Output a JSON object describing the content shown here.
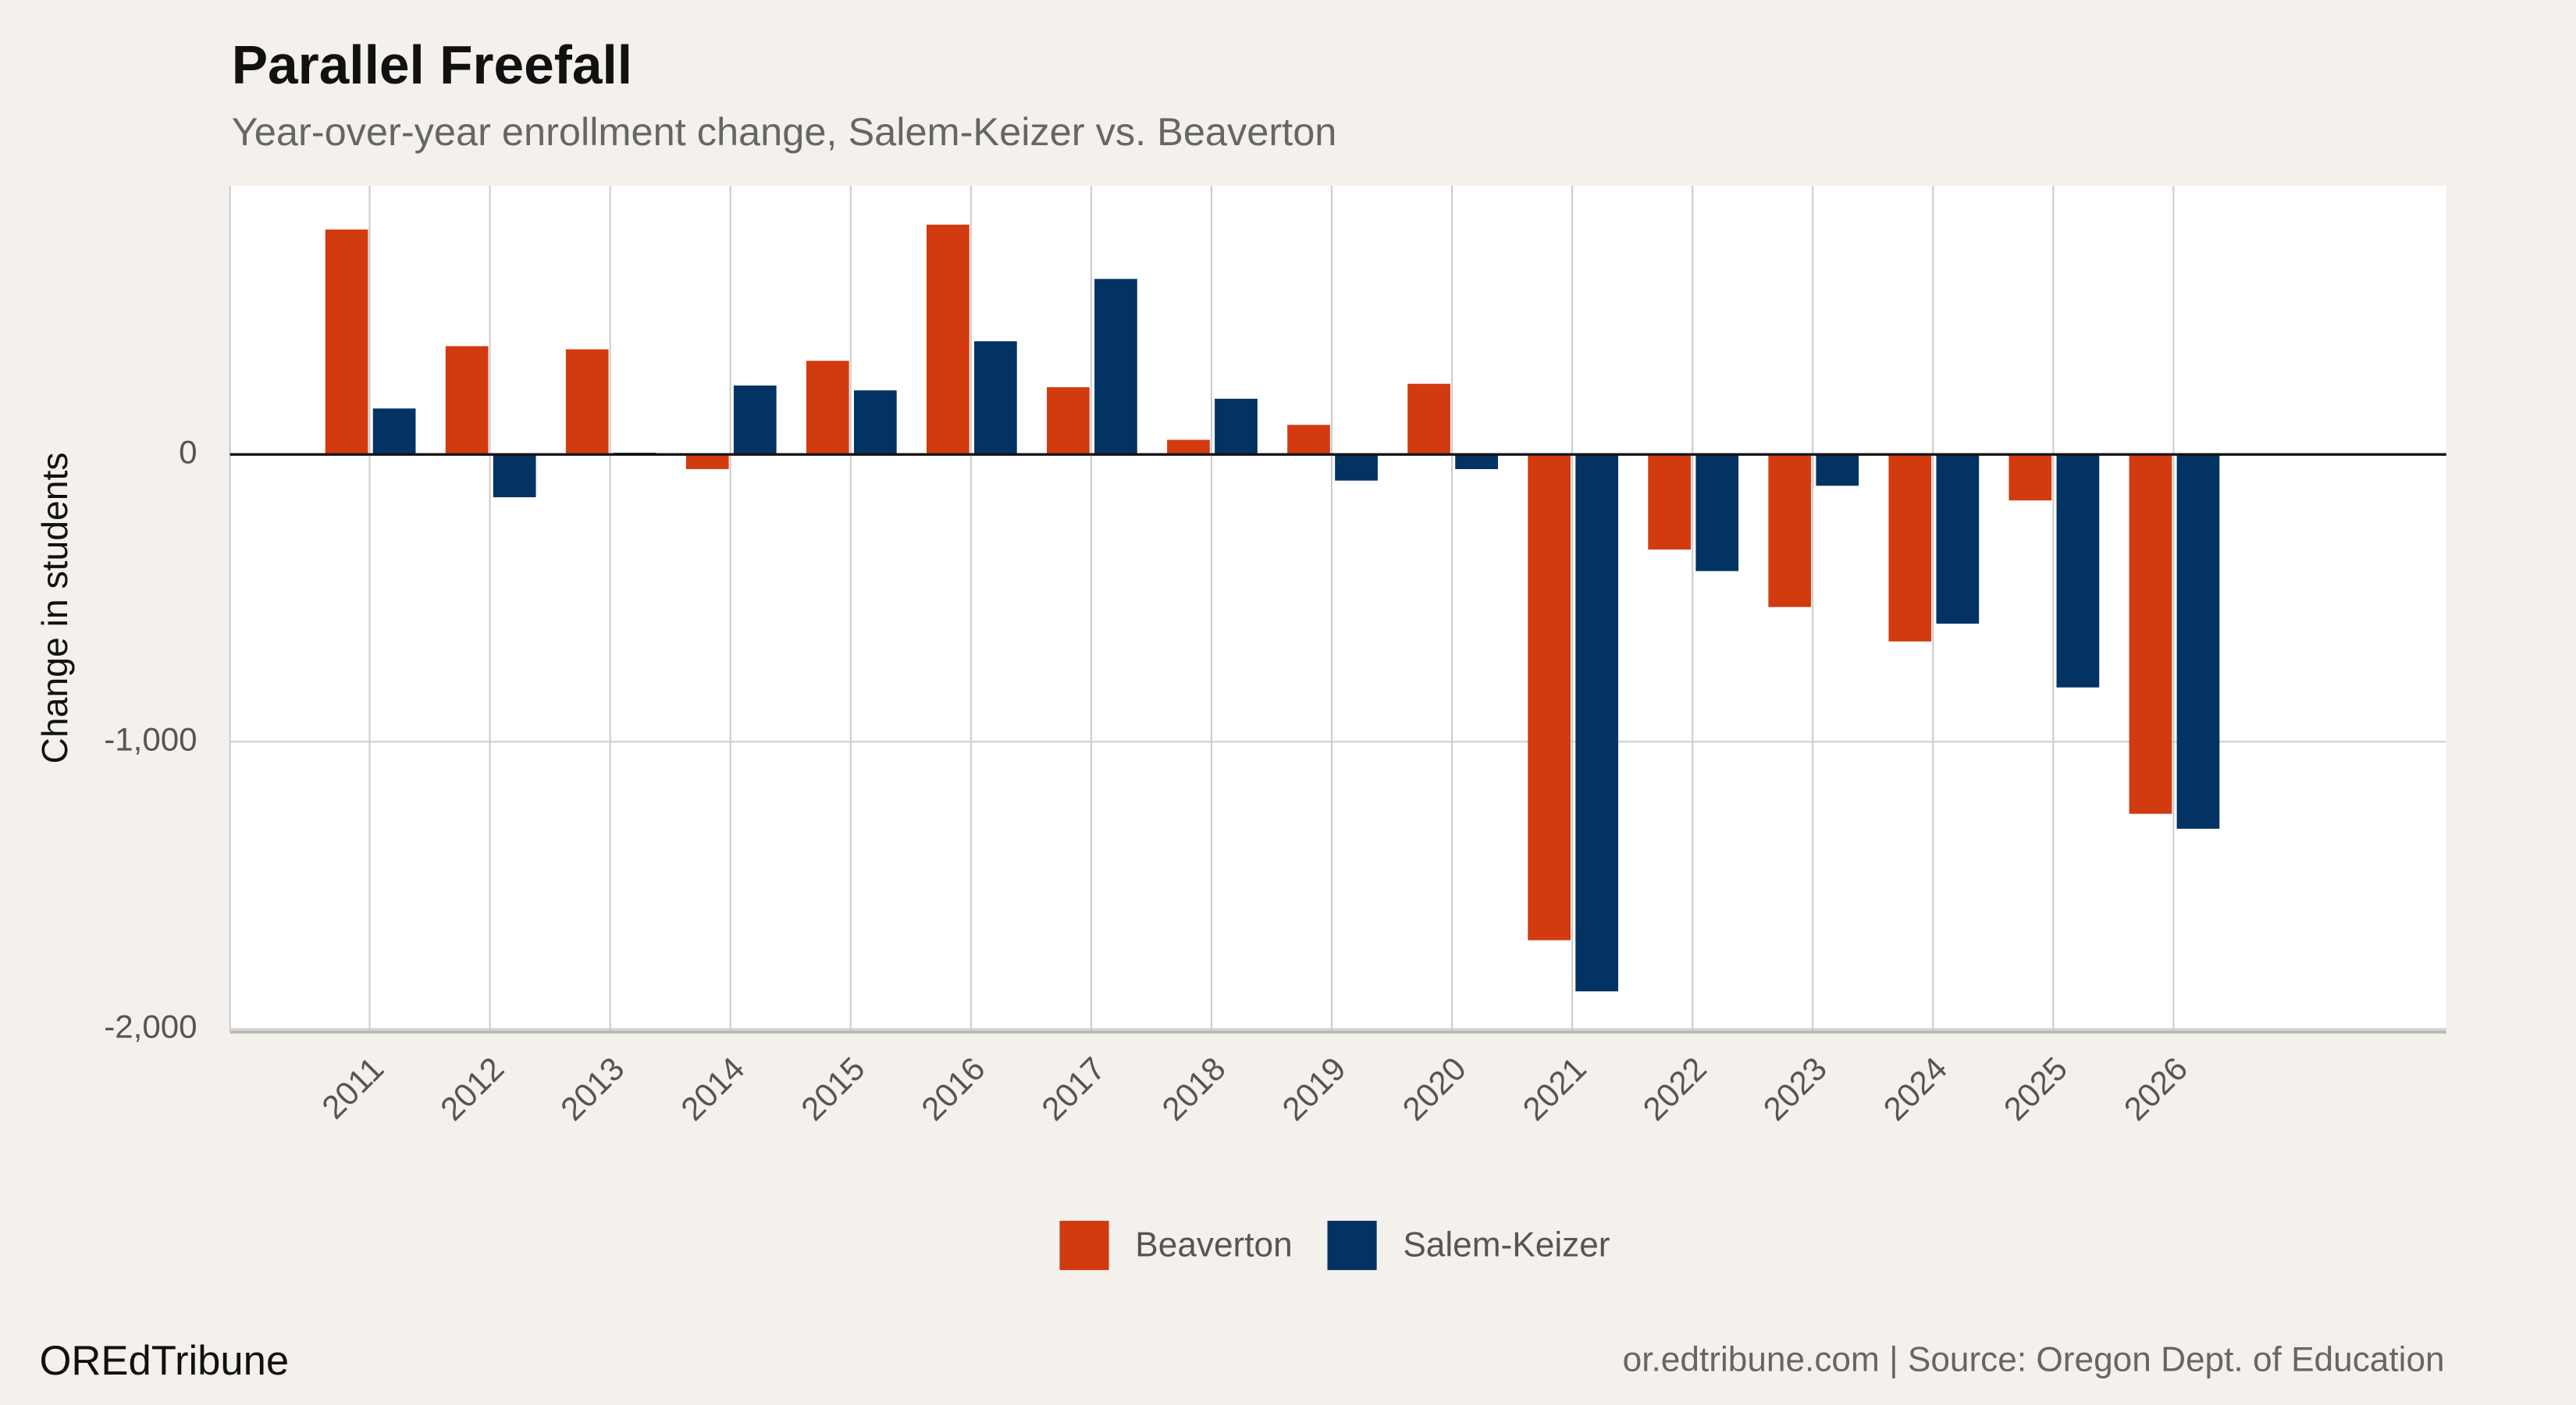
{
  "chart_data": {
    "type": "bar",
    "title": "Parallel Freefall",
    "subtitle": "Year-over-year enrollment change, Salem-Keizer vs. Beaverton",
    "y_label": "Change in students",
    "categories": [
      "2011",
      "2012",
      "2013",
      "2014",
      "2015",
      "2016",
      "2017",
      "2018",
      "2019",
      "2020",
      "2021",
      "2022",
      "2023",
      "2024",
      "2025",
      "2026"
    ],
    "series": [
      {
        "name": "Beaverton",
        "color": "#d13b0f",
        "values": [
          783,
          377,
          366,
          -51,
          326,
          800,
          234,
          51,
          103,
          246,
          -1691,
          -331,
          -531,
          -651,
          -160,
          -1251
        ]
      },
      {
        "name": "Salem-Keizer",
        "color": "#033363",
        "values": [
          160,
          -149,
          6,
          240,
          223,
          394,
          611,
          194,
          -91,
          -51,
          -1869,
          -406,
          -109,
          -589,
          -811,
          -1303
        ]
      }
    ],
    "ylim": [
      -2010,
      935
    ],
    "yticks": [
      {
        "value": -2000,
        "label": "-2,000"
      },
      {
        "value": -1000,
        "label": "-1,000"
      },
      0
    ],
    "grid": true,
    "legend": "bottom",
    "footer_left": "OREdTribune",
    "footer_right": "or.edtribune.com | Source: Oregon Dept. of Education"
  }
}
